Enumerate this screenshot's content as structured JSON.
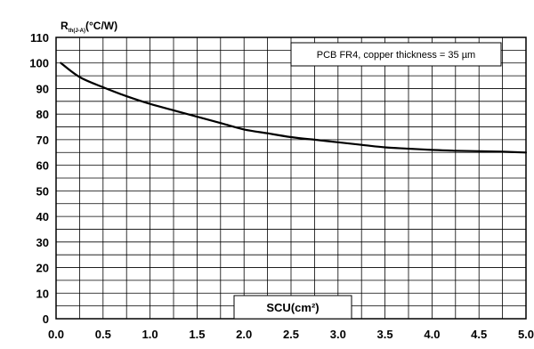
{
  "chart_data": {
    "type": "line",
    "ylabel_main": "R",
    "ylabel_sub": "th(J-A)",
    "ylabel_unit": "(°C/W)",
    "xlabel": "SCU(cm²)",
    "annotation": "PCB FR4, copper thickness = 35 µm",
    "xlim": [
      0,
      5
    ],
    "ylim": [
      0,
      110
    ],
    "grid": true,
    "x_ticks": [
      "0.0",
      "0.5",
      "1.0",
      "1.5",
      "2.0",
      "2.5",
      "3.0",
      "3.5",
      "4.0",
      "4.5",
      "5.0"
    ],
    "y_ticks": [
      "0",
      "10",
      "20",
      "30",
      "40",
      "50",
      "60",
      "70",
      "80",
      "90",
      "100",
      "110"
    ],
    "series": [
      {
        "x": [
          0.05,
          0.25,
          0.5,
          0.75,
          1.0,
          1.25,
          1.5,
          1.75,
          2.0,
          2.25,
          2.5,
          2.75,
          3.0,
          3.25,
          3.5,
          3.75,
          4.0,
          4.25,
          4.5,
          4.75,
          5.0
        ],
        "y": [
          100,
          94.5,
          90.5,
          87,
          84,
          81.5,
          79,
          76.5,
          74,
          72.5,
          71,
          70,
          69,
          68,
          67,
          66.5,
          66,
          65.7,
          65.5,
          65.3,
          65
        ]
      }
    ]
  }
}
